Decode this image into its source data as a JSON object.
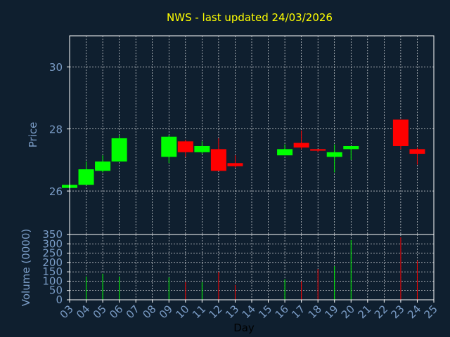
{
  "title": "NWS - last updated 24/03/2026",
  "colors": {
    "background": "#0f1f2f",
    "title": "#ffff00",
    "axis_text": "#7a9cc6",
    "up": "#00ff00",
    "down": "#ff0000",
    "grid": "#ffffff",
    "frame": "#ffffff"
  },
  "chart_data": [
    {
      "type": "candlestick",
      "ylabel": "Price",
      "ylim": [
        24.6,
        31.0
      ],
      "yticks": [
        26,
        28,
        30
      ],
      "grid": true,
      "candles": [
        {
          "day": "03",
          "open": 26.1,
          "high": 26.2,
          "low": 26.1,
          "close": 26.2
        },
        {
          "day": "04",
          "open": 26.2,
          "high": 26.95,
          "low": 26.2,
          "close": 26.7
        },
        {
          "day": "05",
          "open": 26.65,
          "high": 27.15,
          "low": 26.6,
          "close": 26.95
        },
        {
          "day": "06",
          "open": 26.95,
          "high": 27.8,
          "low": 26.95,
          "close": 27.7
        },
        {
          "day": "09",
          "open": 27.1,
          "high": 27.8,
          "low": 26.9,
          "close": 27.75
        },
        {
          "day": "10",
          "open": 27.6,
          "high": 27.65,
          "low": 27.1,
          "close": 27.25
        },
        {
          "day": "11",
          "open": 27.25,
          "high": 27.6,
          "low": 27.2,
          "close": 27.45
        },
        {
          "day": "12",
          "open": 27.35,
          "high": 27.7,
          "low": 26.65,
          "close": 26.65
        },
        {
          "day": "13",
          "open": 26.9,
          "high": 27.15,
          "low": 26.75,
          "close": 26.8
        },
        {
          "day": "16",
          "open": 27.15,
          "high": 27.5,
          "low": 27.15,
          "close": 27.35
        },
        {
          "day": "17",
          "open": 27.55,
          "high": 27.95,
          "low": 27.35,
          "close": 27.4
        },
        {
          "day": "18",
          "open": 27.35,
          "high": 27.35,
          "low": 27.25,
          "close": 27.3
        },
        {
          "day": "19",
          "open": 27.1,
          "high": 27.5,
          "low": 26.6,
          "close": 27.25
        },
        {
          "day": "20",
          "open": 27.35,
          "high": 27.45,
          "low": 27.0,
          "close": 27.45
        },
        {
          "day": "23",
          "open": 28.3,
          "high": 28.3,
          "low": 27.35,
          "close": 27.45
        },
        {
          "day": "24",
          "open": 27.35,
          "high": 27.4,
          "low": 26.85,
          "close": 27.2
        }
      ]
    },
    {
      "type": "bar",
      "ylabel": "Volume (0000)",
      "xlabel": "Day",
      "ylim": [
        0,
        350
      ],
      "yticks": [
        0,
        50,
        100,
        150,
        200,
        250,
        300,
        350
      ],
      "grid": true,
      "categories": [
        "03",
        "04",
        "05",
        "06",
        "07",
        "08",
        "09",
        "10",
        "11",
        "12",
        "13",
        "14",
        "15",
        "16",
        "17",
        "18",
        "19",
        "20",
        "21",
        "22",
        "23",
        "24",
        "25"
      ],
      "volumes": [
        {
          "day": "04",
          "value": 125,
          "direction": "up"
        },
        {
          "day": "05",
          "value": 140,
          "direction": "up"
        },
        {
          "day": "06",
          "value": 125,
          "direction": "up"
        },
        {
          "day": "09",
          "value": 120,
          "direction": "up"
        },
        {
          "day": "10",
          "value": 95,
          "direction": "down"
        },
        {
          "day": "11",
          "value": 95,
          "direction": "up"
        },
        {
          "day": "12",
          "value": 150,
          "direction": "down"
        },
        {
          "day": "13",
          "value": 80,
          "direction": "down"
        },
        {
          "day": "16",
          "value": 110,
          "direction": "up"
        },
        {
          "day": "17",
          "value": 100,
          "direction": "down"
        },
        {
          "day": "18",
          "value": 165,
          "direction": "down"
        },
        {
          "day": "19",
          "value": 180,
          "direction": "up"
        },
        {
          "day": "20",
          "value": 320,
          "direction": "up"
        },
        {
          "day": "23",
          "value": 335,
          "direction": "down"
        },
        {
          "day": "24",
          "value": 210,
          "direction": "down"
        }
      ]
    }
  ]
}
